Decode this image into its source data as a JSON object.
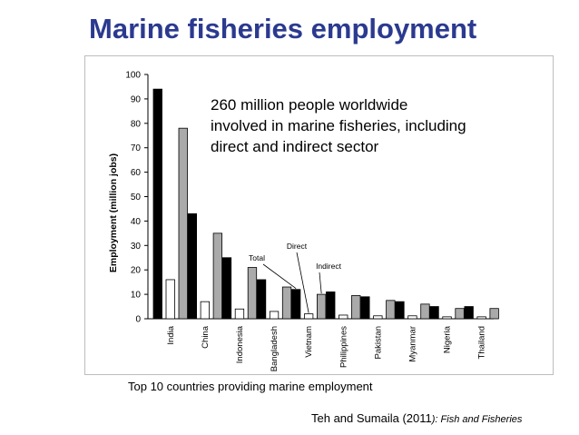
{
  "slide": {
    "title": "Marine fisheries employment",
    "callout_lines": [
      "260 million people worldwide",
      "involved in marine fisheries, including",
      "direct and indirect sector"
    ],
    "caption": "Top 10 countries providing marine employment",
    "citation_authors": "Teh and Sumaila (2011",
    "citation_journal": "): Fish and Fisheries"
  },
  "chart_data": {
    "type": "bar",
    "ylabel": "Employment (million jobs)",
    "xlabel": "",
    "ylim": [
      0,
      100
    ],
    "yticks": [
      0,
      10,
      20,
      30,
      40,
      50,
      60,
      70,
      80,
      90,
      100
    ],
    "grid": false,
    "categories": [
      "India",
      "China",
      "Indonesia",
      "Bangladesh",
      "Vietnam",
      "Philippines",
      "Pakistan",
      "Myanmar",
      "Nigeria",
      "Thailand"
    ],
    "series": [
      {
        "name": "Total",
        "color": "#000000",
        "values": [
          94,
          43,
          25,
          16,
          12,
          11,
          9,
          7,
          5,
          5
        ]
      },
      {
        "name": "Direct",
        "color": "#ffffff",
        "values": [
          16,
          7,
          4,
          3,
          2,
          1.5,
          1.2,
          1.2,
          0.8,
          0.8
        ]
      },
      {
        "name": "Indirect",
        "color": "#aaaaaa",
        "values": [
          78,
          35,
          21,
          13,
          10,
          9.5,
          7.5,
          6,
          4.2,
          4.2
        ]
      }
    ],
    "annotations": [
      {
        "text": "Total",
        "series": 0,
        "category": "Vietnam"
      },
      {
        "text": "Direct",
        "series": 1,
        "category": "Vietnam"
      },
      {
        "text": "Indirect",
        "series": 2,
        "category": "Vietnam"
      }
    ]
  }
}
